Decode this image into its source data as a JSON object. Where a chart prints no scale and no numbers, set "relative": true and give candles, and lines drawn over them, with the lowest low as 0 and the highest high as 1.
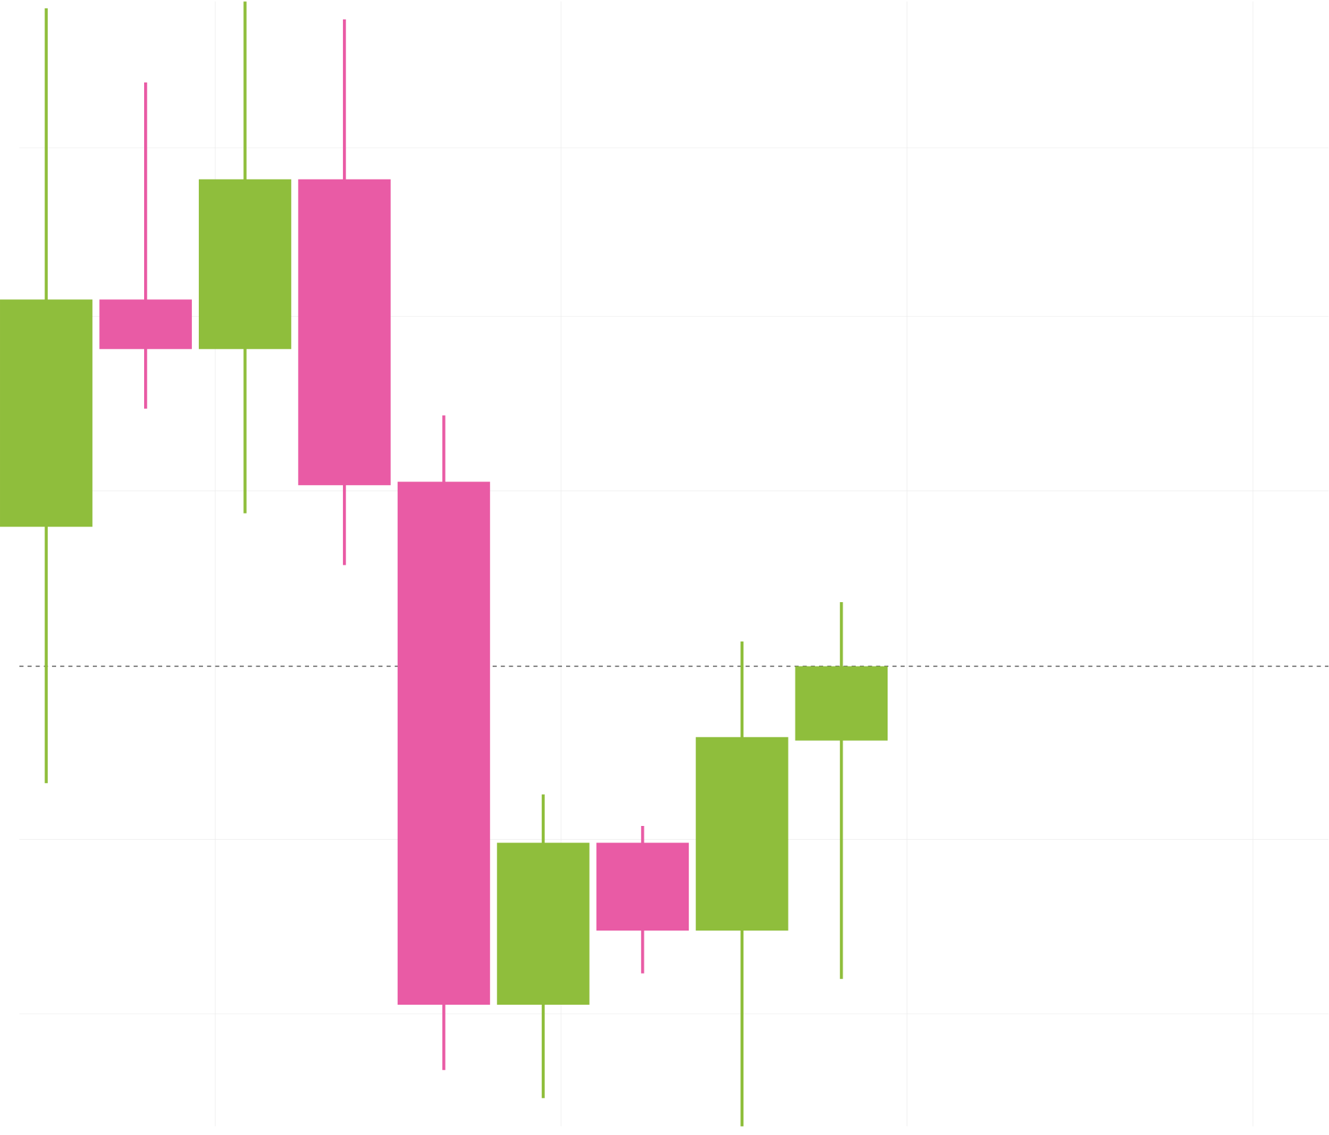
{
  "chart_data": {
    "type": "candlestick",
    "relative": true,
    "categories": [
      null,
      null,
      null,
      null,
      null,
      null,
      null,
      null,
      null
    ],
    "ohlc": [
      [
        0.533,
        0.994,
        0.305,
        0.735
      ],
      [
        0.735,
        0.928,
        0.638,
        0.691
      ],
      [
        0.691,
        1.0,
        0.545,
        0.842
      ],
      [
        0.842,
        0.984,
        0.499,
        0.57
      ],
      [
        0.573,
        0.632,
        0.05,
        0.108
      ],
      [
        0.108,
        0.295,
        0.025,
        0.252
      ],
      [
        0.252,
        0.267,
        0.136,
        0.174
      ],
      [
        0.174,
        0.431,
        0.0,
        0.346
      ],
      [
        0.343,
        0.466,
        0.131,
        0.409
      ]
    ],
    "colors": [
      "#8fbe3c",
      "#e95ba5",
      "#8fbe3c",
      "#e95ba5",
      "#e95ba5",
      "#8fbe3c",
      "#e95ba5",
      "#8fbe3c",
      "#8fbe3c"
    ],
    "grid": true,
    "ref_lines": [
      {
        "axis": "y",
        "value": 0.409,
        "color": "#555555",
        "line_style": "dashed"
      }
    ]
  }
}
